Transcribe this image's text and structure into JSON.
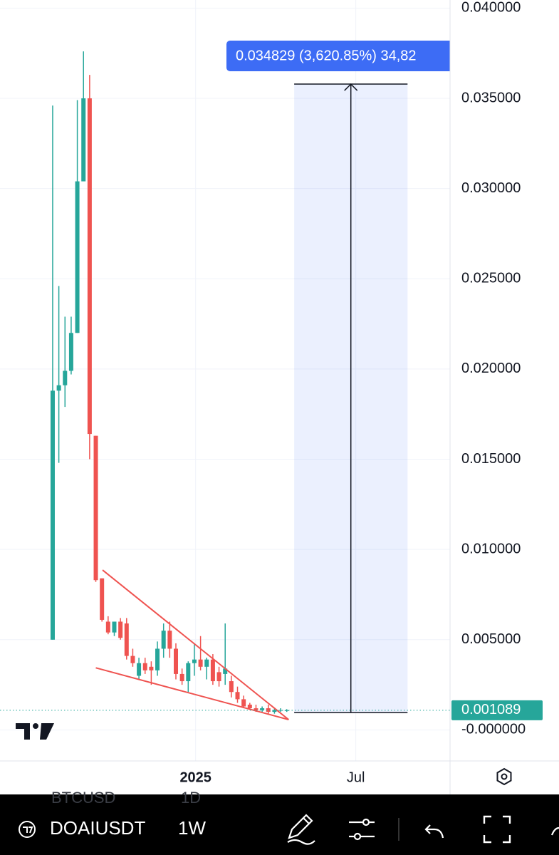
{
  "chart_data": {
    "type": "candlestick",
    "x": [
      0,
      1,
      2,
      3,
      4,
      5,
      6,
      7,
      8,
      9,
      10,
      11,
      12,
      13,
      14,
      15,
      16,
      17,
      18,
      19,
      20,
      21,
      22,
      23,
      24,
      25,
      26,
      27,
      28,
      29,
      30,
      31,
      32,
      33,
      34,
      35,
      36,
      37,
      38
    ],
    "open": [
      0.005,
      0.0188,
      0.0191,
      0.0199,
      0.022,
      0.0304,
      0.035,
      0.0163,
      0.0084,
      0.006,
      0.0054,
      0.006,
      0.0059,
      0.0041,
      0.003,
      0.0037,
      0.0035,
      0.0033,
      0.0045,
      0.0055,
      0.0045,
      0.0031,
      0.0027,
      0.0037,
      0.0039,
      0.0035,
      0.0039,
      0.0032,
      0.0031,
      0.0027,
      0.0021,
      0.0017,
      0.0014,
      0.0012,
      0.0011,
      0.0012,
      0.001,
      0.0011,
      0.00105
    ],
    "high": [
      0.0346,
      0.0246,
      0.0229,
      0.0229,
      0.0349,
      0.0376,
      0.0363,
      0.0163,
      0.0084,
      0.0063,
      0.006,
      0.0062,
      0.0062,
      0.0045,
      0.004,
      0.004,
      0.0038,
      0.0049,
      0.0059,
      0.006,
      0.0048,
      0.0034,
      0.0038,
      0.0048,
      0.0052,
      0.004,
      0.0042,
      0.0035,
      0.0059,
      0.003,
      0.0024,
      0.0019,
      0.0015,
      0.0014,
      0.0013,
      0.0014,
      0.0012,
      0.0012,
      0.00115
    ],
    "low": [
      0.005,
      0.0148,
      0.0179,
      0.0197,
      0.022,
      0.0304,
      0.015,
      0.0082,
      0.006,
      0.0053,
      0.0052,
      0.005,
      0.0039,
      0.0035,
      0.0028,
      0.0031,
      0.0025,
      0.003,
      0.004,
      0.004,
      0.0028,
      0.0025,
      0.0021,
      0.003,
      0.0033,
      0.0028,
      0.0025,
      0.0024,
      0.0025,
      0.0018,
      0.0015,
      0.0012,
      0.0011,
      0.001,
      0.001,
      0.0009,
      0.0009,
      0.001,
      0.001
    ],
    "close": [
      0.0188,
      0.0191,
      0.0199,
      0.022,
      0.0304,
      0.035,
      0.0164,
      0.0083,
      0.0061,
      0.0054,
      0.006,
      0.0051,
      0.0041,
      0.0037,
      0.0037,
      0.0033,
      0.0033,
      0.0045,
      0.0055,
      0.0045,
      0.0031,
      0.0027,
      0.0037,
      0.0039,
      0.0035,
      0.0039,
      0.0027,
      0.0027,
      0.0034,
      0.0021,
      0.0017,
      0.0013,
      0.0012,
      0.0011,
      0.0012,
      0.001,
      0.0011,
      0.0011,
      0.001089
    ],
    "up_color": "#26a69a",
    "down_color": "#ef5350",
    "xlim": [
      -8.55,
      64.5
    ],
    "xticks": [
      {
        "value": 23.2,
        "label": "2025"
      },
      {
        "value": 49.2,
        "label": "Jul"
      }
    ],
    "ylim": [
      -0.00172,
      0.04045
    ],
    "yticks": [
      {
        "value": 0,
        "label": "-0.000000"
      },
      {
        "value": 0.005,
        "label": "0.005000"
      },
      {
        "value": 0.01,
        "label": "0.010000"
      },
      {
        "value": 0.015,
        "label": "0.015000"
      },
      {
        "value": 0.02,
        "label": "0.020000"
      },
      {
        "value": 0.025,
        "label": "0.025000"
      },
      {
        "value": 0.03,
        "label": "0.030000"
      },
      {
        "value": 0.035,
        "label": "0.035000"
      },
      {
        "value": 0.04,
        "label": "0.040000"
      }
    ],
    "grid": true,
    "last_price": 0.001089,
    "last_price_color": "#26a69a",
    "trendlines": [
      {
        "x": [
          8.1,
          38.3
        ],
        "y": [
          0.00886,
          0.00057
        ],
        "color": "#ef5350"
      },
      {
        "x": [
          7.0,
          38.3
        ],
        "y": [
          0.00344,
          0.00057
        ],
        "color": "#ef5350"
      }
    ],
    "measure": {
      "x": [
        39.2,
        57.6
      ],
      "y": [
        0.00096,
        0.035789
      ],
      "label": "0.034829 (3,620.85%) 34,82",
      "color": "#3d6cf5"
    }
  },
  "toolbar": {
    "symbol": "DOAIUSDT",
    "interval": "1W",
    "ghost_symbol": "BTCUSD",
    "ghost_interval": "1D"
  }
}
